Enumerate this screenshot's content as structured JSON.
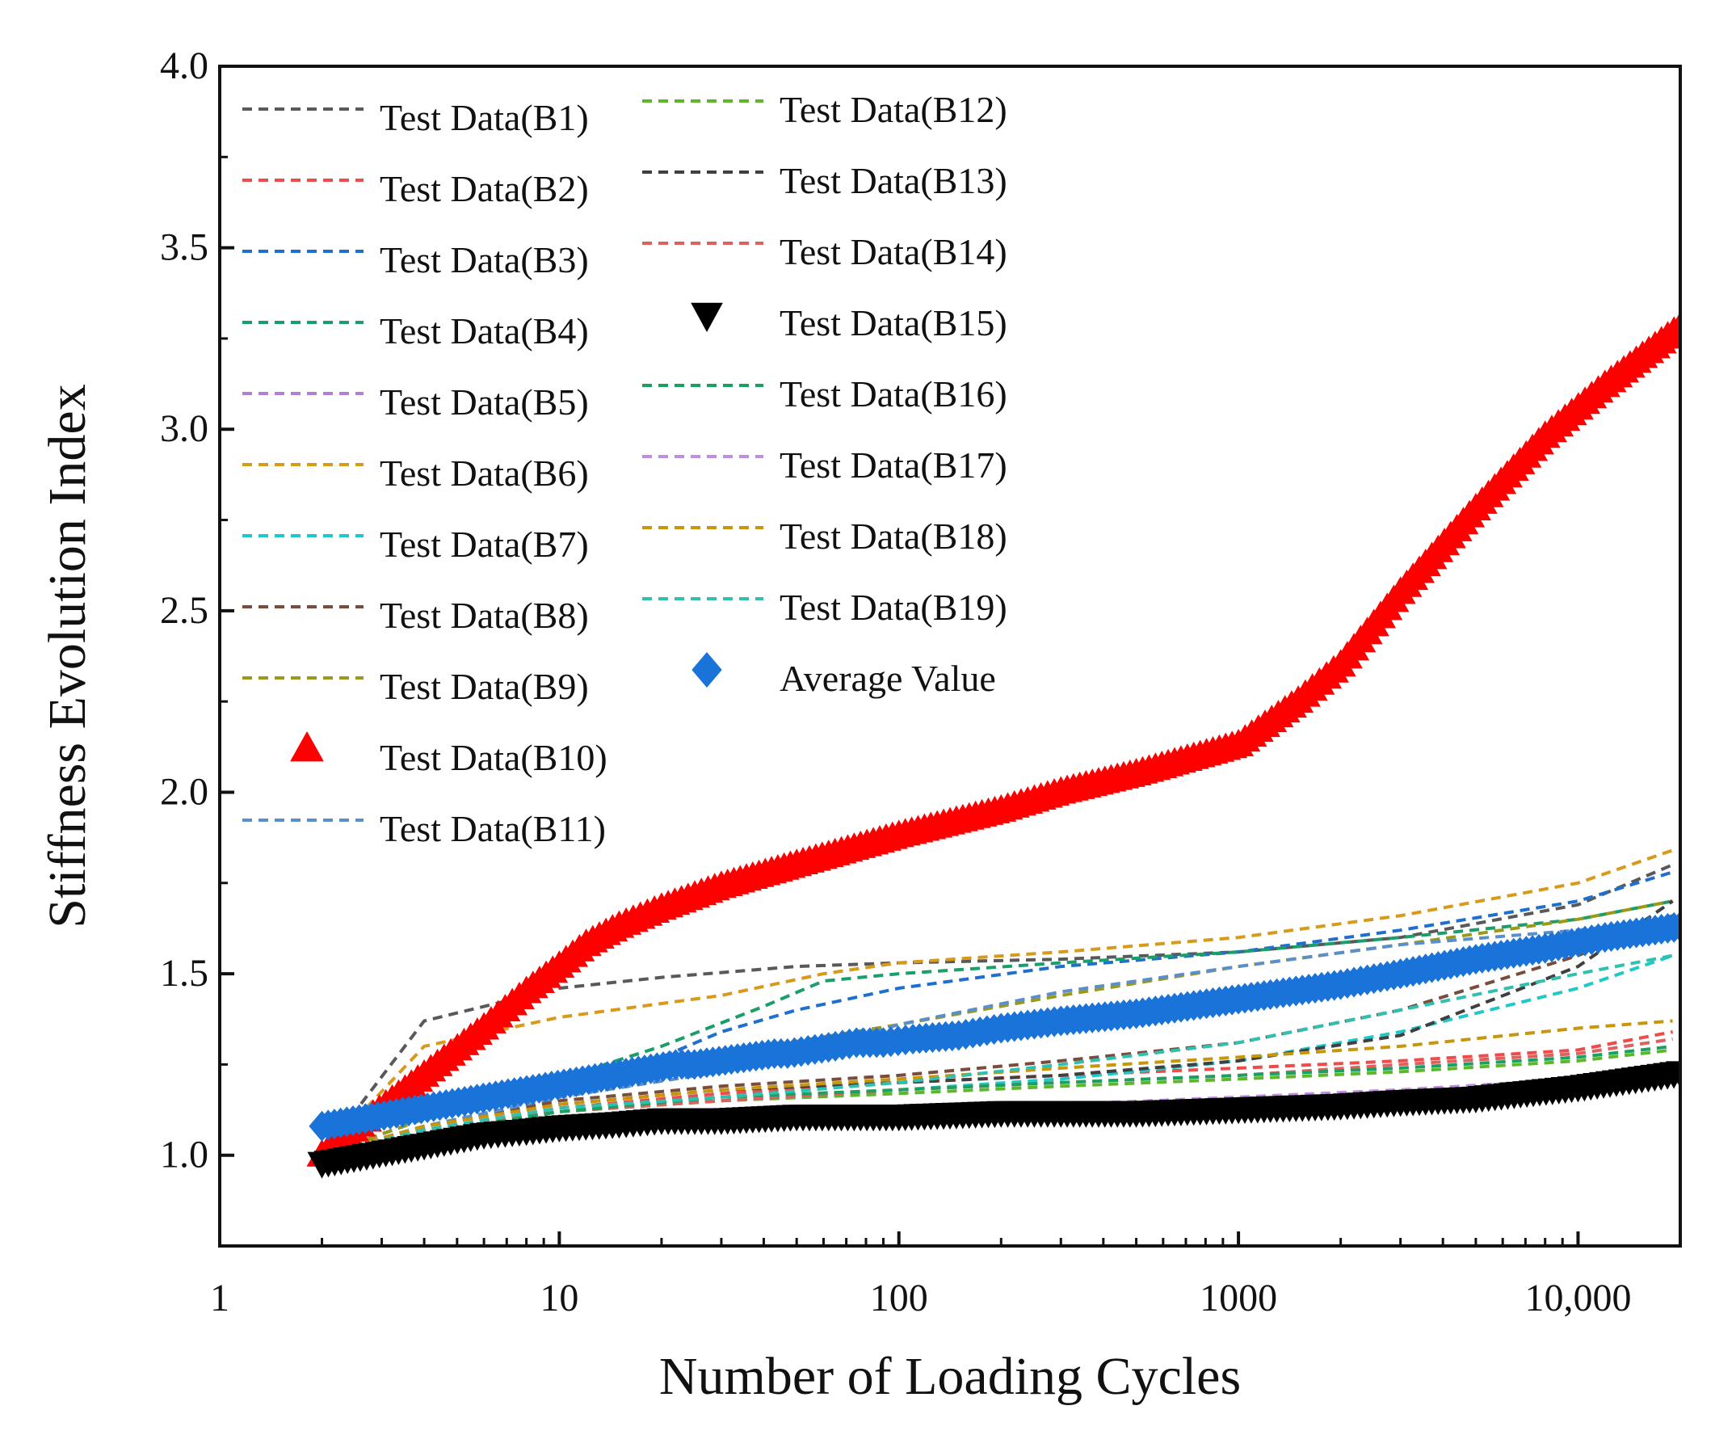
{
  "chart_data": {
    "type": "line",
    "xlabel": "Number of Loading Cycles",
    "ylabel": "Stiffness Evolution Index",
    "x_scale": "log",
    "xlim": [
      1,
      20000
    ],
    "ylim": [
      0.75,
      4.0
    ],
    "x_ticks": [
      {
        "value": 1,
        "label": "1"
      },
      {
        "value": 10,
        "label": "10"
      },
      {
        "value": 100,
        "label": "100"
      },
      {
        "value": 1000,
        "label": "1000"
      },
      {
        "value": 10000,
        "label": "10,000"
      }
    ],
    "y_ticks": [
      {
        "value": 1.0,
        "label": "1.0"
      },
      {
        "value": 1.5,
        "label": "1.5"
      },
      {
        "value": 2.0,
        "label": "2.0"
      },
      {
        "value": 2.5,
        "label": "2.5"
      },
      {
        "value": 3.0,
        "label": "3.0"
      },
      {
        "value": 3.5,
        "label": "3.5"
      },
      {
        "value": 4.0,
        "label": "4.0"
      }
    ],
    "grid": false,
    "legend_position": "top-left",
    "series": [
      {
        "name": "Test Data(B1)",
        "style": "dashed",
        "color": "#595959",
        "points": [
          [
            2,
            1.0
          ],
          [
            4,
            1.37
          ],
          [
            10,
            1.46
          ],
          [
            20,
            1.49
          ],
          [
            50,
            1.52
          ],
          [
            100,
            1.53
          ],
          [
            300,
            1.54
          ],
          [
            1000,
            1.56
          ],
          [
            3000,
            1.6
          ],
          [
            10000,
            1.69
          ],
          [
            19000,
            1.8
          ]
        ]
      },
      {
        "name": "Test Data(B2)",
        "style": "dashed",
        "color": "#f04b4b",
        "points": [
          [
            2,
            1.0
          ],
          [
            4,
            1.07
          ],
          [
            10,
            1.13
          ],
          [
            30,
            1.17
          ],
          [
            100,
            1.2
          ],
          [
            300,
            1.22
          ],
          [
            1000,
            1.24
          ],
          [
            3000,
            1.26
          ],
          [
            10000,
            1.29
          ],
          [
            19000,
            1.34
          ]
        ]
      },
      {
        "name": "Test Data(B3)",
        "style": "dashed",
        "color": "#1f6fcf",
        "points": [
          [
            2,
            1.0
          ],
          [
            4,
            1.1
          ],
          [
            10,
            1.2
          ],
          [
            20,
            1.27
          ],
          [
            30,
            1.34
          ],
          [
            50,
            1.4
          ],
          [
            100,
            1.46
          ],
          [
            300,
            1.52
          ],
          [
            1000,
            1.56
          ],
          [
            3000,
            1.62
          ],
          [
            10000,
            1.7
          ],
          [
            19000,
            1.78
          ]
        ]
      },
      {
        "name": "Test Data(B4)",
        "style": "dashed",
        "color": "#1a9e6a",
        "points": [
          [
            2,
            1.0
          ],
          [
            4,
            1.1
          ],
          [
            10,
            1.21
          ],
          [
            20,
            1.3
          ],
          [
            40,
            1.41
          ],
          [
            60,
            1.48
          ],
          [
            100,
            1.5
          ],
          [
            300,
            1.53
          ],
          [
            1000,
            1.56
          ],
          [
            3000,
            1.6
          ],
          [
            10000,
            1.65
          ],
          [
            19000,
            1.7
          ]
        ]
      },
      {
        "name": "Test Data(B5)",
        "style": "dashed",
        "color": "#b07fd6",
        "points": [
          [
            2,
            1.0
          ],
          [
            4,
            1.05
          ],
          [
            10,
            1.08
          ],
          [
            30,
            1.1
          ],
          [
            100,
            1.12
          ],
          [
            300,
            1.13
          ],
          [
            1000,
            1.15
          ],
          [
            3000,
            1.17
          ],
          [
            10000,
            1.2
          ],
          [
            19000,
            1.25
          ]
        ]
      },
      {
        "name": "Test Data(B6)",
        "style": "dashed",
        "color": "#d89a1a",
        "points": [
          [
            2,
            1.0
          ],
          [
            4,
            1.3
          ],
          [
            10,
            1.38
          ],
          [
            30,
            1.44
          ],
          [
            60,
            1.5
          ],
          [
            100,
            1.53
          ],
          [
            300,
            1.56
          ],
          [
            1000,
            1.6
          ],
          [
            3000,
            1.66
          ],
          [
            10000,
            1.75
          ],
          [
            19000,
            1.84
          ]
        ]
      },
      {
        "name": "Test Data(B7)",
        "style": "dashed",
        "color": "#20c8c8",
        "points": [
          [
            2,
            1.0
          ],
          [
            4,
            1.06
          ],
          [
            10,
            1.12
          ],
          [
            30,
            1.15
          ],
          [
            100,
            1.18
          ],
          [
            300,
            1.21
          ],
          [
            1000,
            1.26
          ],
          [
            3000,
            1.34
          ],
          [
            10000,
            1.46
          ],
          [
            19000,
            1.55
          ]
        ]
      },
      {
        "name": "Test Data(B8)",
        "style": "dashed",
        "color": "#7a4c3c",
        "points": [
          [
            2,
            1.0
          ],
          [
            4,
            1.08
          ],
          [
            10,
            1.15
          ],
          [
            30,
            1.19
          ],
          [
            100,
            1.22
          ],
          [
            300,
            1.26
          ],
          [
            1000,
            1.31
          ],
          [
            3000,
            1.4
          ],
          [
            10000,
            1.55
          ],
          [
            19000,
            1.66
          ]
        ]
      },
      {
        "name": "Test Data(B9)",
        "style": "dashed",
        "color": "#9a9a1a",
        "points": [
          [
            2,
            1.0
          ],
          [
            4,
            1.1
          ],
          [
            10,
            1.2
          ],
          [
            30,
            1.28
          ],
          [
            100,
            1.36
          ],
          [
            300,
            1.44
          ],
          [
            1000,
            1.52
          ],
          [
            3000,
            1.58
          ],
          [
            10000,
            1.65
          ],
          [
            19000,
            1.7
          ]
        ]
      },
      {
        "name": "Test Data(B10)",
        "style": "triangle",
        "color": "#ff0000",
        "points": [
          [
            2,
            1.0
          ],
          [
            4,
            1.22
          ],
          [
            6,
            1.35
          ],
          [
            8,
            1.45
          ],
          [
            10,
            1.52
          ],
          [
            12,
            1.58
          ],
          [
            15,
            1.63
          ],
          [
            20,
            1.68
          ],
          [
            30,
            1.74
          ],
          [
            50,
            1.8
          ],
          [
            100,
            1.88
          ],
          [
            200,
            1.95
          ],
          [
            300,
            2.0
          ],
          [
            500,
            2.05
          ],
          [
            1000,
            2.13
          ],
          [
            1500,
            2.25
          ],
          [
            2000,
            2.35
          ],
          [
            3000,
            2.55
          ],
          [
            5000,
            2.78
          ],
          [
            8000,
            2.98
          ],
          [
            12000,
            3.12
          ],
          [
            20000,
            3.28
          ]
        ]
      },
      {
        "name": "Test Data(B11)",
        "style": "dashed",
        "color": "#5b8fc9",
        "points": [
          [
            2,
            1.0
          ],
          [
            4,
            1.08
          ],
          [
            10,
            1.16
          ],
          [
            30,
            1.23
          ],
          [
            60,
            1.3
          ],
          [
            100,
            1.36
          ],
          [
            300,
            1.45
          ],
          [
            1000,
            1.52
          ],
          [
            3000,
            1.58
          ],
          [
            10000,
            1.62
          ],
          [
            19000,
            1.65
          ]
        ]
      },
      {
        "name": "Test Data(B12)",
        "style": "dashed",
        "color": "#5cb82a",
        "points": [
          [
            2,
            1.0
          ],
          [
            4,
            1.07
          ],
          [
            10,
            1.12
          ],
          [
            30,
            1.15
          ],
          [
            100,
            1.17
          ],
          [
            300,
            1.19
          ],
          [
            1000,
            1.21
          ],
          [
            3000,
            1.23
          ],
          [
            10000,
            1.26
          ],
          [
            19000,
            1.29
          ]
        ]
      },
      {
        "name": "Test Data(B13)",
        "style": "dashed",
        "color": "#404040",
        "points": [
          [
            2,
            1.0
          ],
          [
            4,
            1.08
          ],
          [
            10,
            1.14
          ],
          [
            30,
            1.18
          ],
          [
            100,
            1.2
          ],
          [
            300,
            1.22
          ],
          [
            1000,
            1.26
          ],
          [
            3000,
            1.33
          ],
          [
            10000,
            1.52
          ],
          [
            19000,
            1.7
          ]
        ]
      },
      {
        "name": "Test Data(B14)",
        "style": "dashed",
        "color": "#e06060",
        "points": [
          [
            2,
            1.0
          ],
          [
            4,
            1.07
          ],
          [
            10,
            1.12
          ],
          [
            30,
            1.15
          ],
          [
            100,
            1.18
          ],
          [
            300,
            1.2
          ],
          [
            1000,
            1.22
          ],
          [
            3000,
            1.25
          ],
          [
            10000,
            1.28
          ],
          [
            19000,
            1.32
          ]
        ]
      },
      {
        "name": "Test Data(B15)",
        "style": "triangle-down",
        "color": "#000000",
        "points": [
          [
            2,
            0.98
          ],
          [
            4,
            1.03
          ],
          [
            6,
            1.06
          ],
          [
            8,
            1.07
          ],
          [
            10,
            1.08
          ],
          [
            15,
            1.09
          ],
          [
            20,
            1.1
          ],
          [
            30,
            1.1
          ],
          [
            50,
            1.11
          ],
          [
            100,
            1.11
          ],
          [
            200,
            1.12
          ],
          [
            300,
            1.12
          ],
          [
            500,
            1.12
          ],
          [
            1000,
            1.13
          ],
          [
            2000,
            1.14
          ],
          [
            3000,
            1.15
          ],
          [
            5000,
            1.16
          ],
          [
            10000,
            1.19
          ],
          [
            20000,
            1.23
          ]
        ]
      },
      {
        "name": "Test Data(B16)",
        "style": "dashed",
        "color": "#1aa060",
        "points": [
          [
            2,
            1.0
          ],
          [
            4,
            1.06
          ],
          [
            10,
            1.12
          ],
          [
            30,
            1.16
          ],
          [
            100,
            1.18
          ],
          [
            300,
            1.2
          ],
          [
            1000,
            1.22
          ],
          [
            3000,
            1.24
          ],
          [
            10000,
            1.27
          ],
          [
            19000,
            1.3
          ]
        ]
      },
      {
        "name": "Test Data(B17)",
        "style": "dashed",
        "color": "#c08ee0",
        "points": [
          [
            2,
            1.0
          ],
          [
            4,
            1.05
          ],
          [
            10,
            1.09
          ],
          [
            30,
            1.11
          ],
          [
            100,
            1.13
          ],
          [
            300,
            1.14
          ],
          [
            1000,
            1.16
          ],
          [
            3000,
            1.18
          ],
          [
            10000,
            1.21
          ],
          [
            19000,
            1.24
          ]
        ]
      },
      {
        "name": "Test Data(B18)",
        "style": "dashed",
        "color": "#c8960a",
        "points": [
          [
            2,
            1.0
          ],
          [
            4,
            1.08
          ],
          [
            10,
            1.14
          ],
          [
            30,
            1.18
          ],
          [
            100,
            1.21
          ],
          [
            300,
            1.24
          ],
          [
            1000,
            1.27
          ],
          [
            3000,
            1.3
          ],
          [
            10000,
            1.35
          ],
          [
            19000,
            1.37
          ]
        ]
      },
      {
        "name": "Test Data(B19)",
        "style": "dashed",
        "color": "#30c0b0",
        "points": [
          [
            2,
            1.0
          ],
          [
            4,
            1.07
          ],
          [
            10,
            1.13
          ],
          [
            30,
            1.16
          ],
          [
            100,
            1.2
          ],
          [
            300,
            1.25
          ],
          [
            1000,
            1.31
          ],
          [
            3000,
            1.4
          ],
          [
            10000,
            1.5
          ],
          [
            19000,
            1.55
          ]
        ]
      },
      {
        "name": "Average Value",
        "style": "diamond",
        "color": "#1a73d9",
        "points": [
          [
            2,
            1.08
          ],
          [
            22,
            1.25
          ],
          [
            25,
            1.25
          ],
          [
            43,
            1.28
          ],
          [
            47,
            1.28
          ],
          [
            65,
            1.3
          ],
          [
            75,
            1.31
          ],
          [
            90,
            1.31
          ],
          [
            110,
            1.32
          ],
          [
            150,
            1.33
          ],
          [
            200,
            1.35
          ],
          [
            300,
            1.37
          ],
          [
            500,
            1.39
          ],
          [
            1000,
            1.43
          ],
          [
            2000,
            1.47
          ],
          [
            3000,
            1.5
          ],
          [
            5000,
            1.54
          ],
          [
            8000,
            1.57
          ],
          [
            12000,
            1.6
          ],
          [
            20000,
            1.63
          ]
        ]
      }
    ]
  }
}
